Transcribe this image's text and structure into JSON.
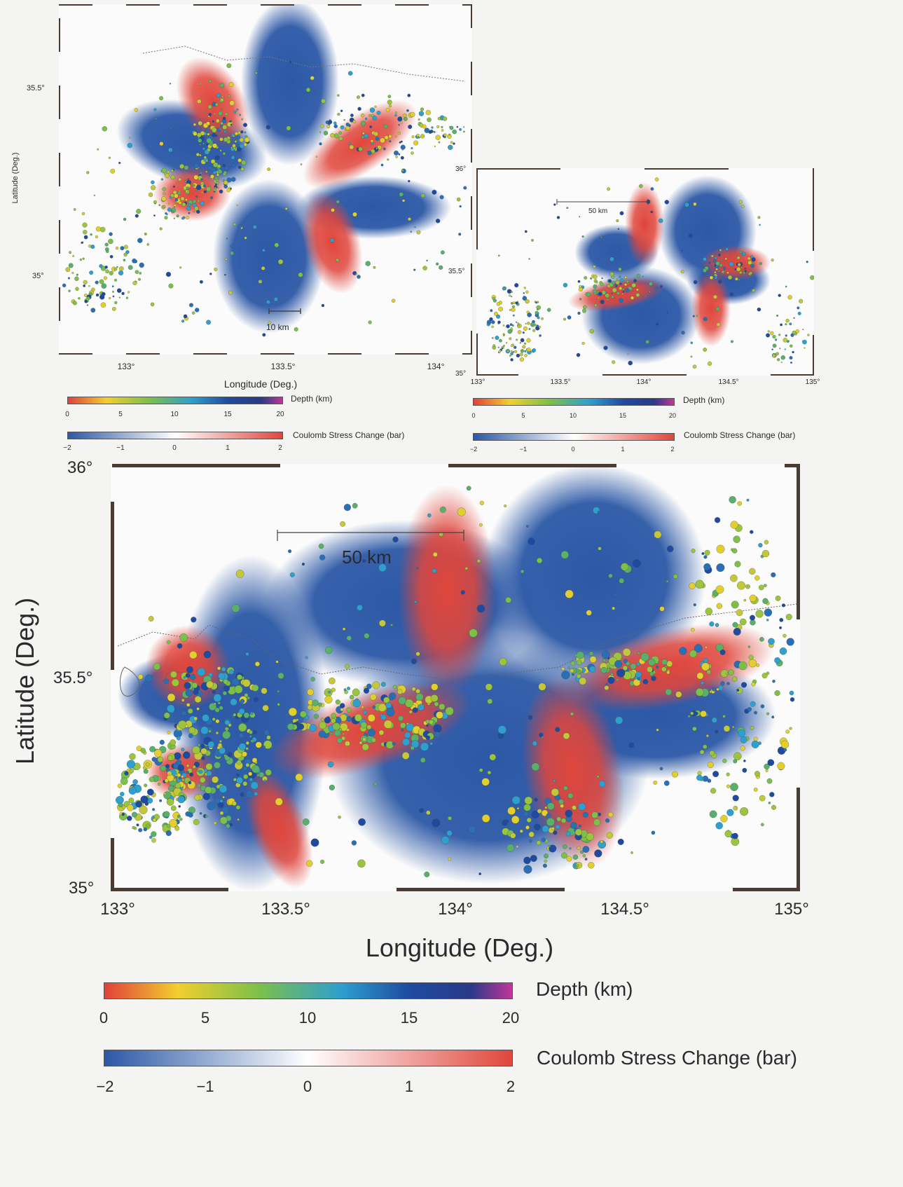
{
  "maps": [
    {
      "id": "top-left",
      "lon_ticks": [
        "133°",
        "133.5°",
        "134°"
      ],
      "lat_ticks": [
        "35.5°",
        "35°"
      ],
      "xlabel": "Longitude (Deg.)",
      "ylabel": "Latitude (Deg.)",
      "scale_bar": "10 km"
    },
    {
      "id": "top-right",
      "lon_ticks": [
        "133°",
        "133.5°",
        "134°",
        "134.5°",
        "135°"
      ],
      "lat_ticks": [
        "36°",
        "35.5°",
        "35°"
      ],
      "scale_bar": "50 km"
    },
    {
      "id": "main",
      "lon_ticks": [
        "133°",
        "133.5°",
        "134°",
        "134.5°",
        "135°"
      ],
      "lat_ticks": [
        "36°",
        "35.5°",
        "35°"
      ],
      "xlabel": "Longitude (Deg.)",
      "ylabel": "Latitude (Deg.)",
      "scale_bar": "50 km"
    }
  ],
  "legends": {
    "depth": {
      "title": "Depth (km)",
      "ticks": [
        "0",
        "5",
        "10",
        "15",
        "20"
      ],
      "colors": [
        "#e2403a",
        "#f2cf2e",
        "#7cc04a",
        "#2e9fcf",
        "#1f4aa0",
        "#2a3a88",
        "#c3359a"
      ]
    },
    "coulomb": {
      "title": "Coulomb Stress Change (bar)",
      "ticks": [
        "−2",
        "−1",
        "0",
        "1",
        "2"
      ],
      "colors": [
        "#2c58a6",
        "#ffffff",
        "#e0463c"
      ]
    }
  },
  "colors": {
    "negative_stress": "#2c58a6",
    "positive_stress": "#e0463c",
    "frame": "#4a3b33"
  }
}
